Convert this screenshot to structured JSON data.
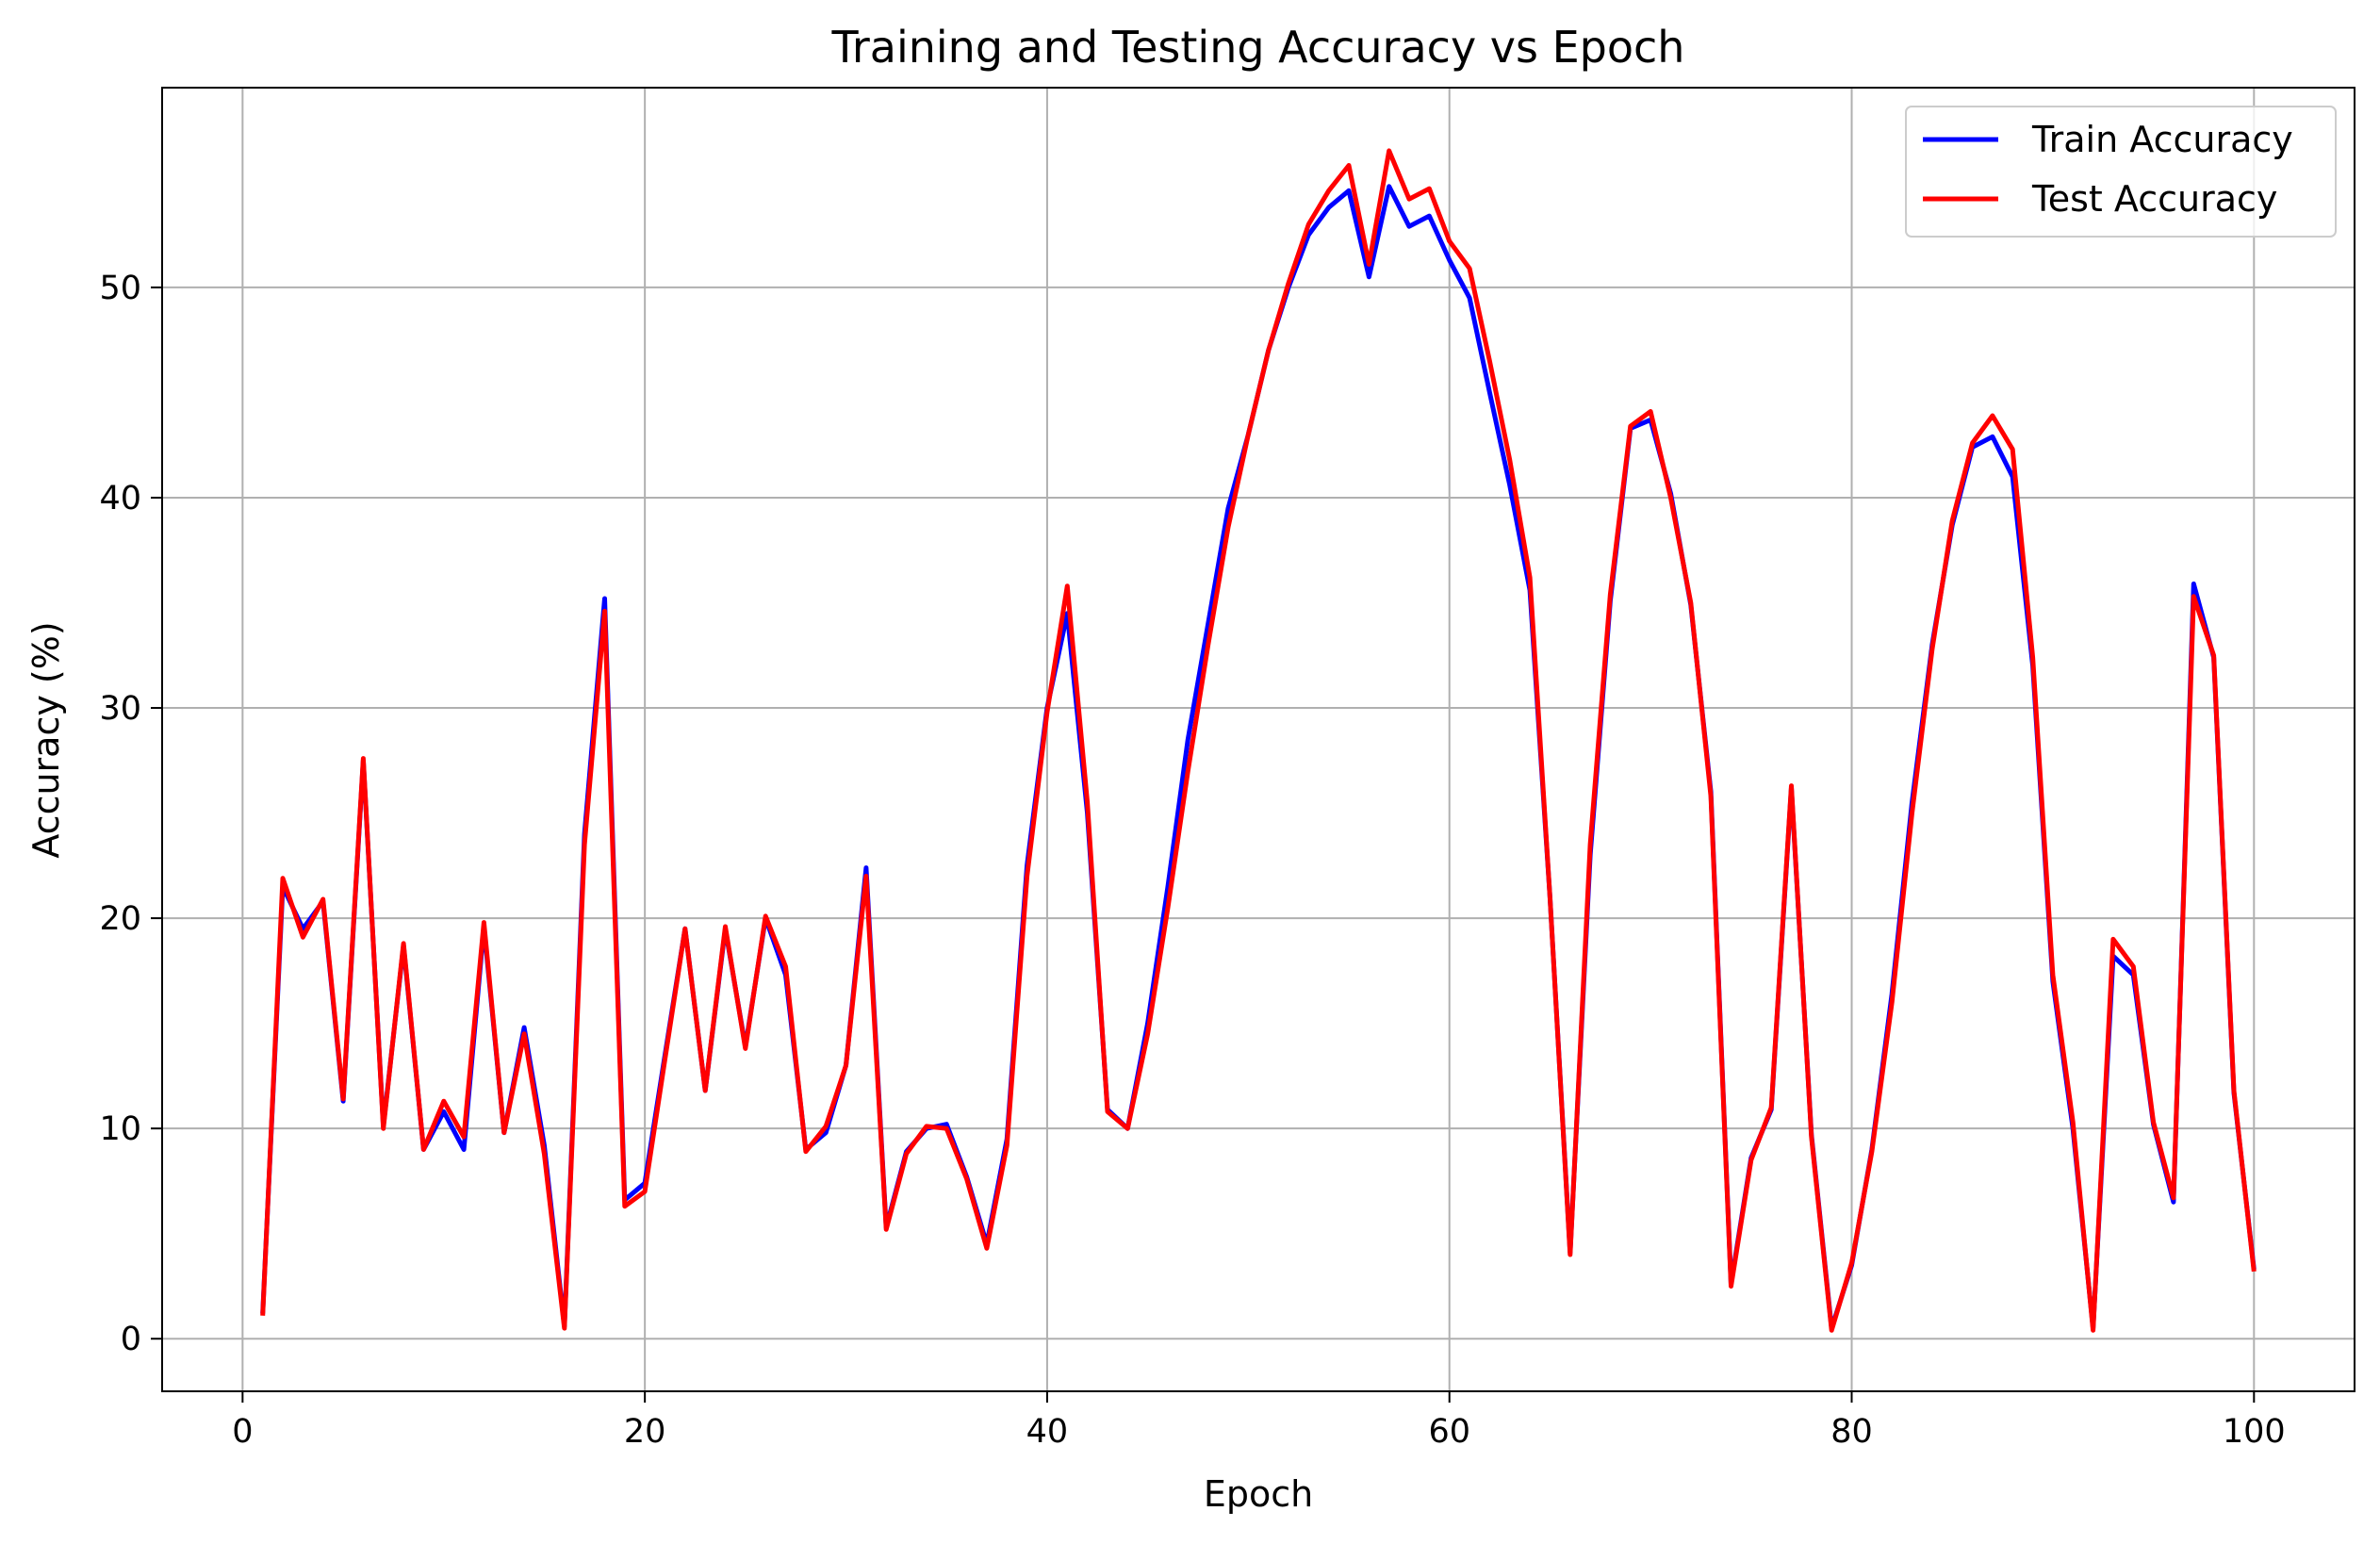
{
  "chart_data": {
    "type": "line",
    "title": "Training and Testing Accuracy vs Epoch",
    "xlabel": "Epoch",
    "ylabel": "Accuracy (%)",
    "xlim": [
      -4,
      105
    ],
    "ylim": [
      -2.5,
      59.5
    ],
    "xticks": [
      0,
      20,
      40,
      60,
      80,
      100
    ],
    "yticks": [
      0,
      10,
      20,
      30,
      40,
      50
    ],
    "grid": true,
    "legend_position": "top-right",
    "x": [
      1,
      2,
      3,
      4,
      5,
      6,
      7,
      8,
      9,
      10,
      11,
      12,
      13,
      14,
      15,
      16,
      17,
      18,
      19,
      20,
      21,
      22,
      23,
      24,
      25,
      26,
      27,
      28,
      29,
      30,
      31,
      32,
      33,
      34,
      35,
      36,
      37,
      38,
      39,
      40,
      41,
      42,
      43,
      44,
      45,
      46,
      47,
      48,
      49,
      50,
      51,
      52,
      53,
      54,
      55,
      56,
      57,
      58,
      59,
      60,
      61,
      62,
      63,
      64,
      65,
      66,
      67,
      68,
      69,
      70,
      71,
      72,
      73,
      74,
      75,
      76,
      77,
      78,
      79,
      80,
      81,
      82,
      83,
      84,
      85,
      86,
      87,
      88,
      89,
      90,
      91,
      92,
      93,
      94,
      95,
      96,
      97,
      98,
      99,
      100
    ],
    "series": [
      {
        "name": "Train Accuracy",
        "color": "#0000ff",
        "values": [
          1.2,
          21.5,
          19.5,
          20.8,
          11.3,
          27.5,
          10.1,
          18.7,
          9.0,
          10.8,
          9.0,
          19.6,
          9.8,
          14.8,
          9.2,
          0.6,
          24.0,
          35.2,
          6.6,
          7.4,
          13.5,
          19.5,
          11.8,
          19.5,
          13.9,
          20.0,
          17.3,
          9.0,
          9.8,
          13.0,
          22.4,
          5.3,
          8.9,
          10.0,
          10.2,
          7.7,
          4.5,
          9.5,
          22.5,
          30.0,
          34.5,
          25.0,
          10.9,
          10.0,
          15.0,
          21.5,
          28.5,
          34.0,
          39.5,
          43.0,
          47.0,
          50.0,
          52.5,
          53.8,
          54.6,
          50.5,
          54.8,
          52.9,
          53.4,
          51.3,
          49.5,
          45.0,
          40.6,
          35.6,
          21.0,
          4.1,
          23.0,
          35.1,
          43.3,
          43.7,
          40.2,
          34.9,
          26.0,
          2.6,
          8.6,
          10.9,
          26.2,
          9.7,
          0.5,
          3.5,
          9.0,
          16.4,
          25.5,
          33.0,
          38.7,
          42.4,
          42.9,
          41.0,
          32.0,
          17.0,
          10.0,
          0.5,
          18.2,
          17.3,
          10.2,
          6.5,
          35.9,
          32.4,
          11.7,
          3.3
        ]
      },
      {
        "name": "Test Accuracy",
        "color": "#ff0000",
        "values": [
          1.1,
          21.9,
          19.1,
          20.9,
          11.4,
          27.6,
          10.0,
          18.8,
          9.0,
          11.3,
          9.6,
          19.8,
          9.8,
          14.5,
          8.8,
          0.5,
          23.5,
          34.6,
          6.3,
          7.0,
          13.3,
          19.5,
          11.8,
          19.6,
          13.8,
          20.1,
          17.7,
          8.9,
          10.1,
          13.0,
          22.0,
          5.2,
          8.8,
          10.1,
          10.0,
          7.6,
          4.3,
          9.2,
          22.0,
          29.8,
          35.8,
          25.5,
          10.8,
          10.0,
          14.5,
          20.5,
          27.0,
          33.0,
          38.6,
          43.0,
          47.0,
          50.2,
          53.0,
          54.6,
          55.8,
          51.1,
          56.5,
          54.2,
          54.7,
          52.2,
          50.9,
          46.5,
          41.8,
          36.2,
          21.0,
          4.0,
          23.5,
          35.4,
          43.4,
          44.1,
          40.0,
          35.0,
          25.8,
          2.5,
          8.5,
          11.0,
          26.3,
          9.6,
          0.4,
          3.6,
          8.9,
          16.0,
          25.0,
          32.8,
          38.9,
          42.6,
          43.9,
          42.3,
          32.4,
          17.3,
          10.3,
          0.4,
          19.0,
          17.7,
          10.3,
          6.7,
          35.3,
          32.5,
          11.8,
          3.2
        ]
      }
    ]
  }
}
